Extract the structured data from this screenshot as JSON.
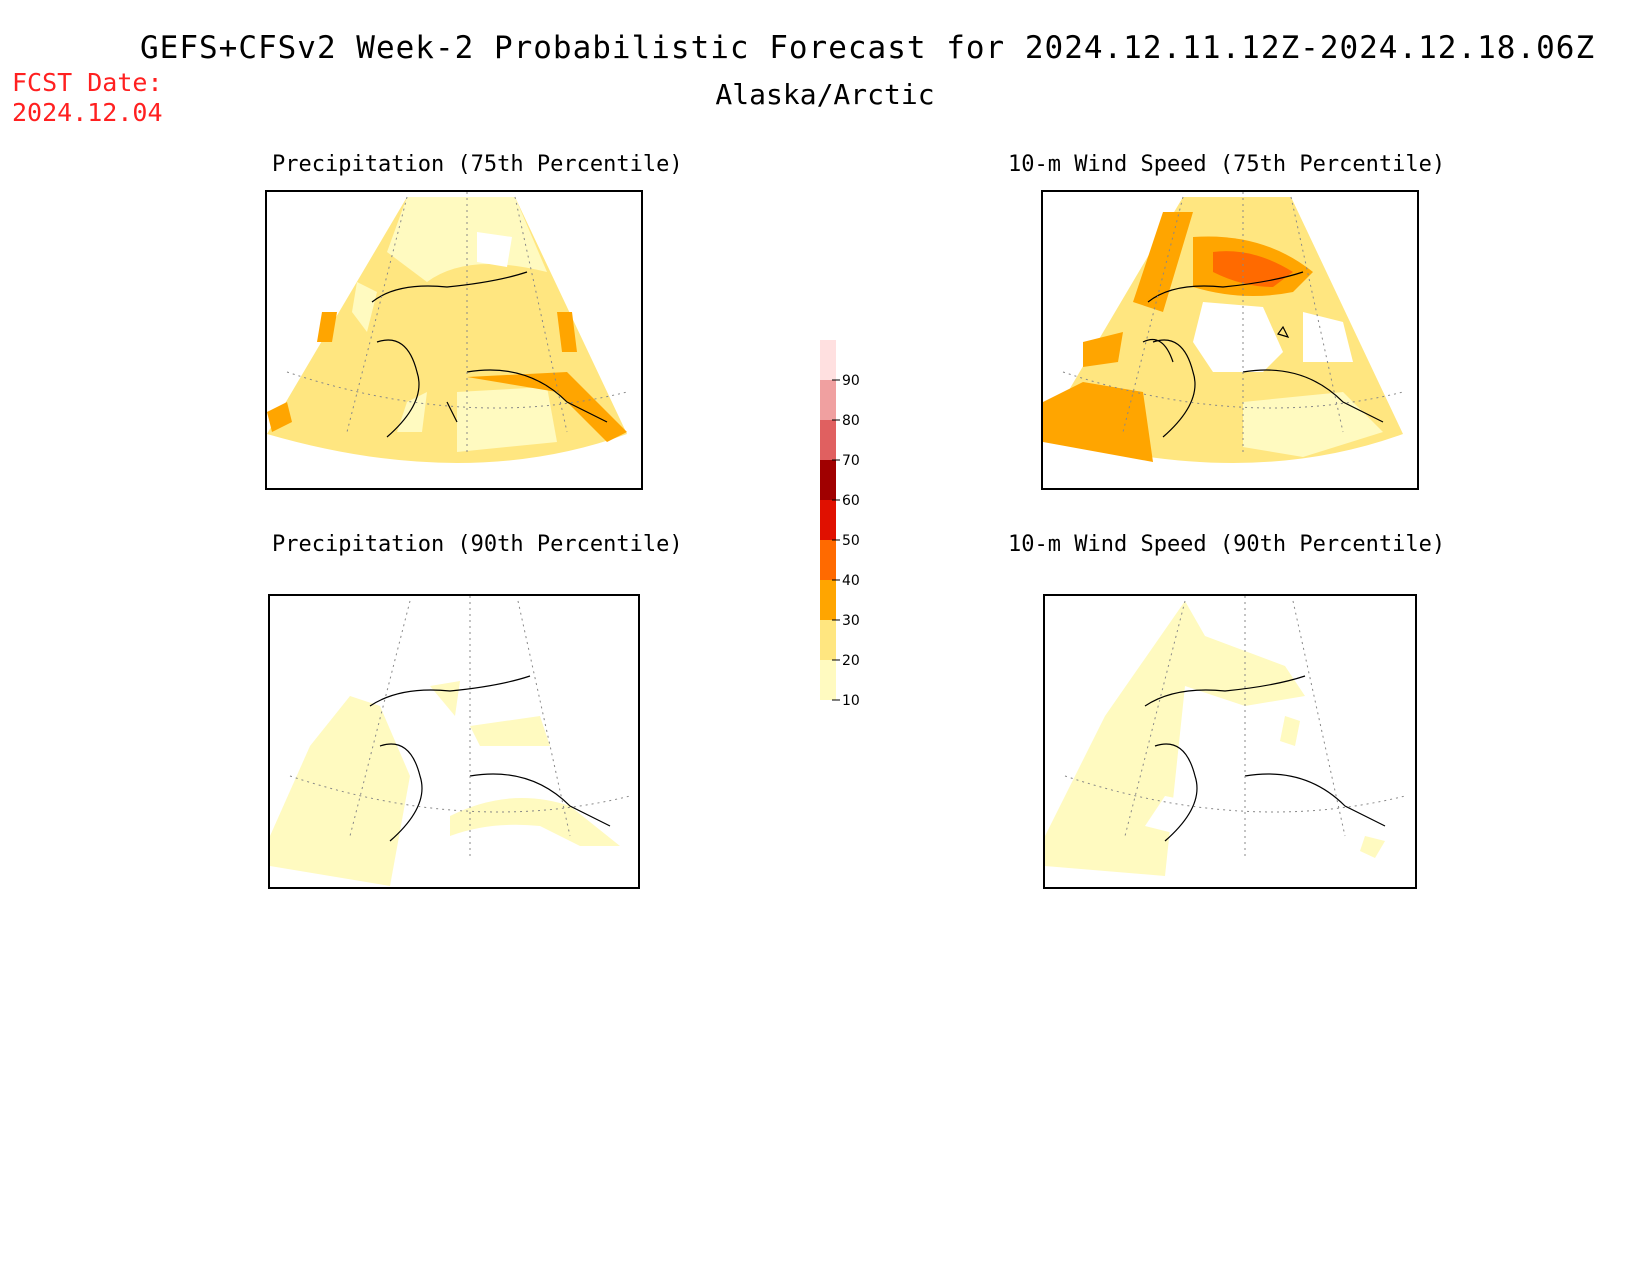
{
  "header": {
    "title": "GEFS+CFSv2 Week-2 Probabilistic Forecast for 2024.12.11.12Z-2024.12.18.06Z",
    "subtitle": "Alaska/Arctic",
    "fcst_label": "FCST Date:",
    "fcst_date": "2024.12.04"
  },
  "panels": [
    {
      "title": "Precipitation (75th Percentile)"
    },
    {
      "title": "10-m Wind Speed (75th Percentile)"
    },
    {
      "title": "Precipitation (90th Percentile)"
    },
    {
      "title": "10-m Wind Speed (90th Percentile)"
    }
  ],
  "colorbar": {
    "levels": [
      "10",
      "20",
      "30",
      "40",
      "50",
      "60",
      "70",
      "80",
      "90"
    ],
    "colors": [
      "#fffac0",
      "#ffe680",
      "#ffa500",
      "#ff6a00",
      "#e01000",
      "#a00000",
      "#e06060",
      "#f0a0a0",
      "#ffe0e0"
    ]
  }
}
